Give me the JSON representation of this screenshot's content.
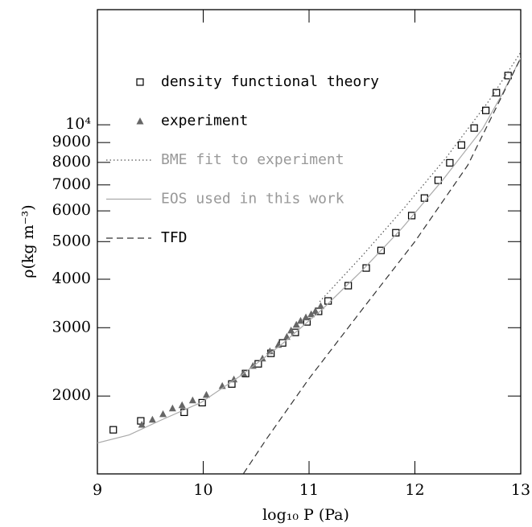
{
  "chart_data": {
    "type": "scatter-line",
    "x_label": "log₁₀ P (Pa)",
    "y_label": "ρ(kg m⁻³)",
    "xlim": [
      9,
      13
    ],
    "xticks": [
      9,
      10,
      11,
      12,
      13
    ],
    "ylim": [
      1260,
      19800
    ],
    "log_y": true,
    "yticks": [
      2000,
      3000,
      4000,
      5000,
      6000,
      7000,
      8000,
      9000,
      {
        "value": 10000,
        "label": "10⁴"
      }
    ],
    "legend": "upper left",
    "series": [
      {
        "name": "density functional theory",
        "mark": "square",
        "color": "#000000",
        "x": [
          9.15,
          9.41,
          9.82,
          9.99,
          10.27,
          10.4,
          10.52,
          10.64,
          10.75,
          10.87,
          10.98,
          11.09,
          11.18,
          11.37,
          11.54,
          11.68,
          11.82,
          11.97,
          12.09,
          12.22,
          12.33,
          12.44,
          12.56,
          12.67,
          12.77,
          12.88
        ],
        "values": [
          1637,
          1726,
          1816,
          1923,
          2148,
          2286,
          2421,
          2577,
          2741,
          2917,
          3105,
          3305,
          3516,
          3850,
          4275,
          4745,
          5270,
          5835,
          6475,
          7195,
          7980,
          8870,
          9810,
          10890,
          12100,
          13390
        ]
      },
      {
        "name": "experiment",
        "mark": "triangle",
        "color": "#666666",
        "x": [
          9.42,
          9.52,
          9.62,
          9.71,
          9.8,
          9.9,
          10.03,
          10.18,
          10.29,
          10.38,
          10.47,
          10.56,
          10.63,
          10.71,
          10.79,
          10.83,
          10.88,
          10.92,
          10.97,
          11.02,
          11.06,
          11.11
        ],
        "values": [
          1690,
          1741,
          1799,
          1861,
          1897,
          1952,
          2018,
          2127,
          2210,
          2294,
          2396,
          2502,
          2612,
          2714,
          2847,
          2956,
          3058,
          3131,
          3194,
          3255,
          3317,
          3415
        ]
      },
      {
        "name": "BME fit to experiment",
        "mark": "dotted",
        "color": "#555555",
        "label_color": "#999999",
        "x": [
          11.1,
          11.5,
          11.9,
          12.3,
          12.7,
          13.0
        ],
        "values": [
          3500,
          4590,
          6110,
          8260,
          11530,
          15370
        ]
      },
      {
        "name": "EOS used in this work",
        "mark": "solid",
        "color": "#aaaaaa",
        "label_color": "#999999",
        "x": [
          9.0,
          9.3,
          9.6,
          9.98,
          10.36,
          10.74,
          11.12,
          11.5,
          11.88,
          12.26,
          12.64,
          12.82,
          13.0
        ],
        "values": [
          1514,
          1588,
          1733,
          1925,
          2263,
          2716,
          3337,
          4210,
          5420,
          7190,
          9770,
          11930,
          14860
        ]
      },
      {
        "name": "TFD",
        "mark": "dashed",
        "color": "#333333",
        "x": [
          10.38,
          10.6,
          11.0,
          11.5,
          12.0,
          12.5,
          13.0
        ],
        "values": [
          1262,
          1553,
          2218,
          3337,
          5000,
          7870,
          14870
        ]
      }
    ]
  }
}
